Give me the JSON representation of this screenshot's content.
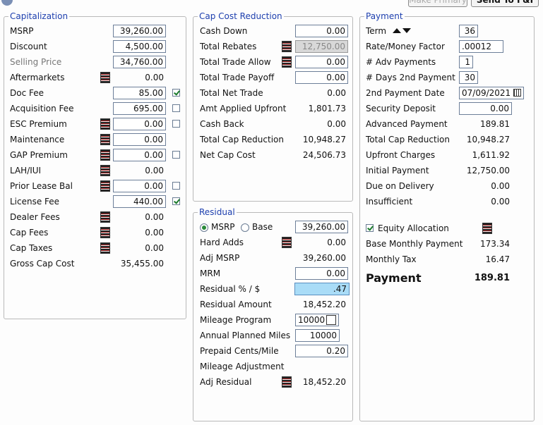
{
  "toolbar": {
    "buttons": [
      "Make Primary",
      "Send To F&I"
    ]
  },
  "capitalization": {
    "title": "Capitalization",
    "rows": [
      {
        "label": "MSRP",
        "value": "39,260.00",
        "input": true
      },
      {
        "label": "Discount",
        "value": "4,500.00",
        "input": true
      },
      {
        "label": "Selling Price",
        "value": "34,760.00",
        "input": true,
        "muted": true
      },
      {
        "label": "Aftermarkets",
        "value": "0.00",
        "icon": true
      },
      {
        "label": "Doc Fee",
        "value": "85.00",
        "input": true,
        "checkbox": true
      },
      {
        "label": "Acquisition Fee",
        "value": "695.00",
        "input": true,
        "checkbox": false
      },
      {
        "label": "ESC Premium",
        "value": "0.00",
        "input": true,
        "icon": true,
        "checkbox": false
      },
      {
        "label": "Maintenance",
        "value": "0.00",
        "input": true,
        "icon": true
      },
      {
        "label": "GAP Premium",
        "value": "0.00",
        "input": true,
        "icon": true,
        "checkbox": false
      },
      {
        "label": "LAH/IUI",
        "value": "0.00",
        "icon": true
      },
      {
        "label": "Prior Lease Bal",
        "value": "0.00",
        "input": true,
        "icon": true,
        "checkbox": false
      },
      {
        "label": "License Fee",
        "value": "440.00",
        "input": true,
        "checkbox": true
      },
      {
        "label": "Dealer Fees",
        "value": "0.00",
        "icon": true
      },
      {
        "label": "Cap Fees",
        "value": "0.00",
        "icon": true
      },
      {
        "label": "Cap Taxes",
        "value": "0.00",
        "icon": true
      },
      {
        "label": "Gross Cap Cost",
        "value": "35,455.00"
      }
    ]
  },
  "cap_cost_reduction": {
    "title": "Cap Cost Reduction",
    "rows": [
      {
        "label": "Cash Down",
        "value": "0.00",
        "input": true
      },
      {
        "label": "Total Rebates",
        "value": "12,750.00",
        "input": true,
        "icon": true,
        "disabled": true
      },
      {
        "label": "Total Trade Allow",
        "value": "0.00",
        "input": true,
        "icon": true
      },
      {
        "label": "Total Trade Payoff",
        "value": "0.00",
        "input": true
      },
      {
        "label": "Total Net Trade",
        "value": "0.00"
      },
      {
        "label": "Amt Applied Upfront",
        "value": "1,801.73"
      },
      {
        "label": "Cash Back",
        "value": "0.00"
      },
      {
        "label": "Total Cap Reduction",
        "value": "10,948.27"
      },
      {
        "label": "Net Cap Cost",
        "value": "24,506.73"
      }
    ]
  },
  "residual": {
    "title": "Residual",
    "rows": [
      {
        "radios": [
          "MSRP",
          "Base"
        ],
        "selected": 0,
        "value": "39,260.00",
        "input": true
      },
      {
        "label": "Hard Adds",
        "value": "0.00",
        "icon": true
      },
      {
        "label": "Adj MSRP",
        "value": "39,260.00"
      },
      {
        "label": "MRM",
        "value": "0.00",
        "input": true
      },
      {
        "label": "Residual % / $",
        "value": ".47",
        "input": true,
        "highlighted": true
      },
      {
        "label": "Residual Amount",
        "value": "18,452.20"
      },
      {
        "label": "Mileage Program",
        "value": "10000",
        "input": true,
        "dropdown": true
      },
      {
        "label": "Annual Planned Miles",
        "value": "10000",
        "input": true
      },
      {
        "label": "Prepaid Cents/Mile",
        "value": "0.20",
        "input": true
      },
      {
        "label": "Mileage Adjustment"
      },
      {
        "label": "Adj Residual",
        "value": "18,452.20",
        "icon": true
      }
    ]
  },
  "payment": {
    "title": "Payment",
    "rows": [
      {
        "label": "Term",
        "value": "36",
        "input": true,
        "spinner": true
      },
      {
        "label": "Rate/Money Factor",
        "value": ".00012",
        "input": true
      },
      {
        "label": "# Adv Payments",
        "value": "1",
        "input": true
      },
      {
        "label": "# Days 2nd Payment",
        "value": "30",
        "input": true
      },
      {
        "label": "2nd Payment Date",
        "value": "07/09/2021",
        "input": true,
        "calendar": true
      },
      {
        "label": "Security Deposit",
        "value": "0.00",
        "input": true
      },
      {
        "label": "Advanced Payment",
        "value": "189.81"
      },
      {
        "label": "Total Cap Reduction",
        "value": "10,948.27"
      },
      {
        "label": "Upfront Charges",
        "value": "1,611.92"
      },
      {
        "label": "Initial Payment",
        "value": "12,750.00"
      },
      {
        "label": "Due on Delivery",
        "value": "0.00"
      },
      {
        "label": "Insufficient",
        "value": "0.00"
      }
    ],
    "summary": [
      {
        "label": "Equity Allocation",
        "checkbox": true,
        "icon": true
      },
      {
        "label": "Base Monthly Payment",
        "value": "173.34"
      },
      {
        "label": "Monthly Tax",
        "value": "16.47"
      },
      {
        "label": "Payment",
        "value": "189.81",
        "emphasis": true
      }
    ]
  }
}
